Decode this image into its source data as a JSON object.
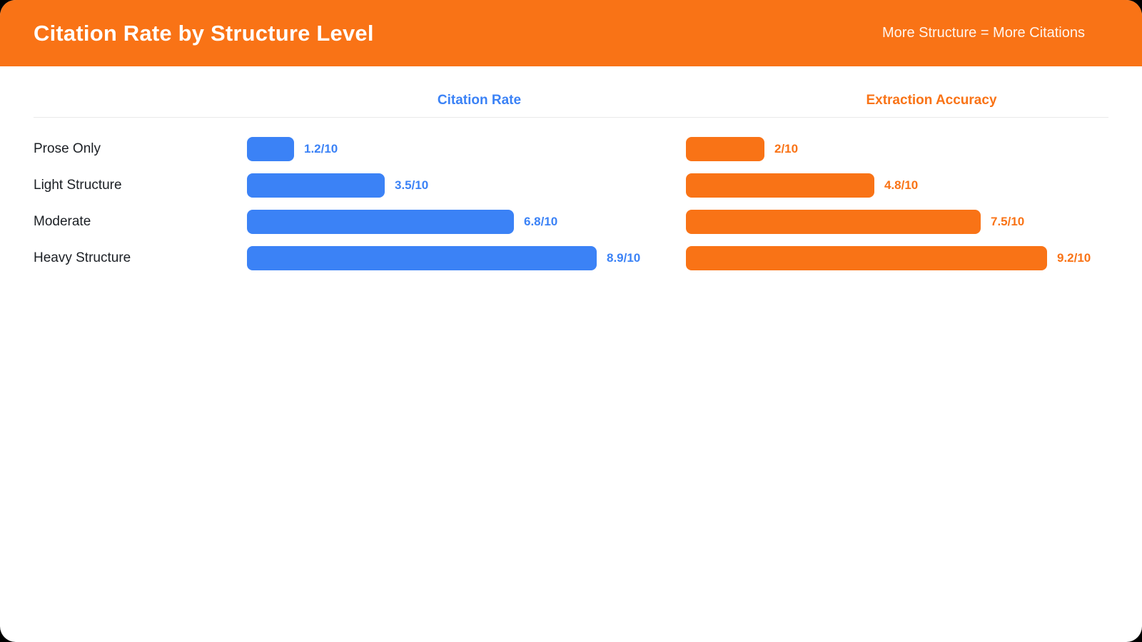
{
  "header": {
    "title": "Citation Rate by Structure Level",
    "tagline": "More Structure = More Citations",
    "background_color": "#F97316",
    "title_color": "#FFFFFF"
  },
  "chart_data": {
    "type": "bar",
    "orientation": "horizontal",
    "title": "Citation Rate by Structure Level",
    "annotation": "More Structure = More Citations",
    "categories": [
      "Prose Only",
      "Light Structure",
      "Moderate",
      "Heavy Structure"
    ],
    "series": [
      {
        "name": "Citation Rate",
        "color": "#3B82F6",
        "values": [
          1.2,
          3.5,
          6.8,
          8.9
        ],
        "labels": [
          "1.2/10",
          "3.5/10",
          "6.8/10",
          "8.9/10"
        ]
      },
      {
        "name": "Extraction Accuracy",
        "color": "#F97316",
        "values": [
          2,
          4.8,
          7.5,
          9.2
        ],
        "labels": [
          "2/10",
          "4.8/10",
          "7.5/10",
          "9.2/10"
        ]
      }
    ],
    "xlim": [
      0,
      10
    ],
    "scale_max": 10,
    "grid": false,
    "legend_position": "column-headers",
    "value_suffix": "/10"
  }
}
